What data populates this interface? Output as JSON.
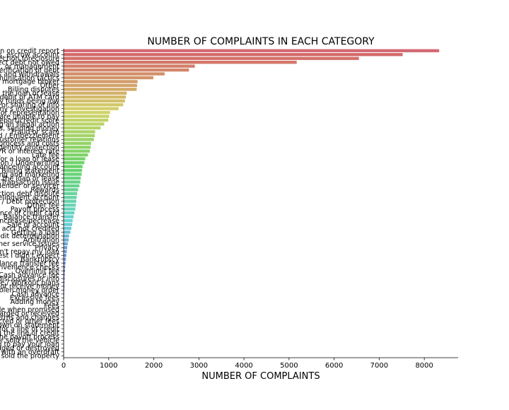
{
  "chart_data": {
    "type": "bar",
    "orientation": "horizontal",
    "title": "NUMBER OF COMPLAINTS IN EACH CATEGORY",
    "xlabel": "NUMBER OF COMPLAINTS",
    "ylabel": "",
    "xlim": [
      0,
      8750
    ],
    "xticks": [
      0,
      1000,
      2000,
      3000,
      4000,
      5000,
      6000,
      7000,
      8000
    ],
    "grid": false,
    "legend": "none",
    "palette": "husl",
    "categories": [
      "Incorrect information on credit report",
      "Loan servicing, payments, escrow account",
      "Loan modification,collection,foreclosure",
      "Cont'd attempts collect debt not owed",
      "Account opening, closing, or management",
      "Disclosure verification of debt",
      "Deposits and withdrawals",
      "Communication tactics",
      "Application, originator, mortgage broker",
      "Other",
      "Billing disputes",
      "Managing the loan or lease",
      "Using a debit or ATM card",
      "Problems caused by my funds being low",
      "Improper contact or sharing of info",
      "Credit reporting company's investigation",
      "False statements or representation",
      "Problems when you are unable to pay",
      "Unable to get credit report/credit score",
      "Taking/threatening an illegal action",
      "Making/receiving payments, sending money",
      "Fraud or scam",
      "Identity theft / Fraud / Embezzlement",
      "Customer service / Customer relations",
      "Settlement process and costs",
      "Credit monitoring or identity protection",
      "APR or interest rate",
      "Late fee",
      "Shopping for a loan or lease",
      "Credit decision / Underwriting",
      "Closing/Cancelling account",
      "Billing statement",
      "Advertising and marketing",
      "Taking out the loan or lease",
      "Transaction issue",
      "Dealing with my lender or servicer",
      "Rewards",
      "Collection debt dispute",
      "Delinquent account",
      "Credit card protection / Debt protection",
      "Other fee",
      "Payoff process",
      "Unsolicited issuance of credit card",
      "Balance transfer",
      "Credit line increase/decrease",
      "Sale of account",
      "Payment to acct not credited",
      "Getting a loan",
      "Credit determination",
      "Arbitration",
      "Customer service issues",
      "Privacy",
      "Can't repay my loan",
      "Charged fees or interest I didn't expect",
      "Bankruptcy",
      "Balance transfer fee",
      "Convenience checks",
      "Overlimit fee",
      "Cash advance fee",
      "Incorrect/missing disclosures or info",
      "Forbearance / Workout plans",
      "Applied for loan/did not receive money",
      "Lost or stolen money order",
      "Cash advance",
      "Excessive fees",
      "Adding money",
      "Fees",
      "Money was not available when promised",
      "Wrong amount charged or received",
      "Account terms and changes",
      "Unexpected or other fees",
      "Problem with a purchase shown on statement",
      "Shopping for a line of credit",
      "Managing the line of credit",
      "Problem with the payoff process",
      "Lender repossessed or sold the vehicle",
      "Struggling to pay your loan",
      "Vehicle was damaged or destroyed",
      "Problem with an overdraft",
      "Lender sold the property"
    ],
    "values": [
      8330,
      7520,
      6550,
      5170,
      2910,
      2780,
      2240,
      1990,
      1640,
      1630,
      1620,
      1400,
      1380,
      1360,
      1320,
      1220,
      1030,
      1010,
      990,
      900,
      820,
      700,
      690,
      670,
      610,
      600,
      580,
      540,
      480,
      460,
      420,
      410,
      400,
      380,
      370,
      350,
      320,
      300,
      290,
      280,
      270,
      260,
      240,
      220,
      200,
      190,
      170,
      150,
      120,
      110,
      90,
      80,
      70,
      60,
      50,
      40,
      35,
      30,
      25,
      22,
      20,
      18,
      16,
      14,
      12,
      10,
      9,
      8,
      7,
      6,
      5,
      5,
      4,
      4,
      3,
      3,
      2,
      2,
      2,
      1
    ]
  }
}
